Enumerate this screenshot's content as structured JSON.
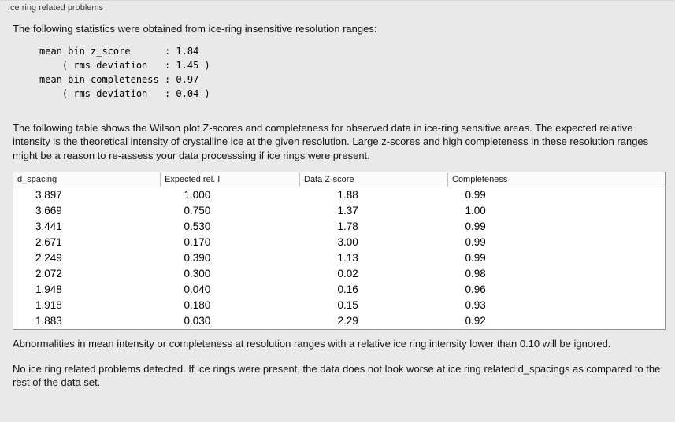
{
  "panel": {
    "title": "Ice ring related problems"
  },
  "intro": "The following statistics were obtained from ice-ring insensitive resolution ranges:",
  "stats_lines": [
    "mean bin z_score      : 1.84",
    "    ( rms deviation   : 1.45 )",
    "mean bin completeness : 0.97",
    "    ( rms deviation   : 0.04 )"
  ],
  "table_intro": "The following table shows the Wilson plot Z-scores and completeness for observed data in ice-ring sensitive areas. The expected relative intensity is the theoretical intensity of crystalline ice at the given resolution. Large z-scores and high completeness in these resolution ranges might be a reason to re-assess your data processsing if ice rings were present.",
  "table": {
    "headers": [
      "d_spacing",
      "Expected rel. I",
      "Data Z-score",
      "Completeness"
    ],
    "rows": [
      [
        "3.897",
        "1.000",
        "1.88",
        "0.99"
      ],
      [
        "3.669",
        "0.750",
        "1.37",
        "1.00"
      ],
      [
        "3.441",
        "0.530",
        "1.78",
        "0.99"
      ],
      [
        "2.671",
        "0.170",
        "3.00",
        "0.99"
      ],
      [
        "2.249",
        "0.390",
        "1.13",
        "0.99"
      ],
      [
        "2.072",
        "0.300",
        "0.02",
        "0.98"
      ],
      [
        "1.948",
        "0.040",
        "0.16",
        "0.96"
      ],
      [
        "1.918",
        "0.180",
        "0.15",
        "0.93"
      ],
      [
        "1.883",
        "0.030",
        "2.29",
        "0.92"
      ]
    ]
  },
  "note_ignored": "Abnormalities in mean intensity or completeness at resolution ranges with a relative ice ring intensity lower than 0.10 will be ignored.",
  "conclusion": "No ice ring related problems detected. If ice rings were present, the data does not look worse at ice ring related d_spacings as compared to the rest of the data set."
}
